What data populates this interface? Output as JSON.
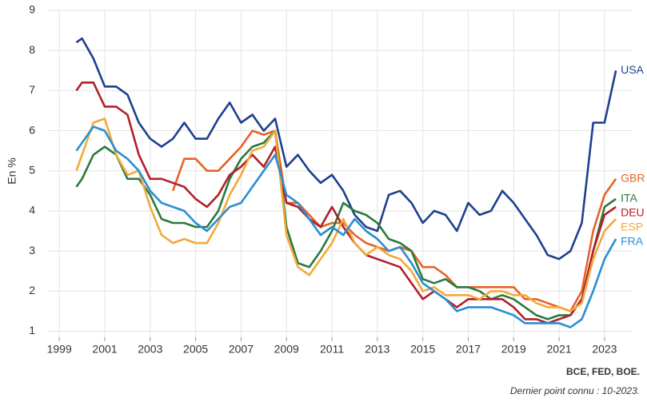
{
  "chart_data": {
    "type": "line",
    "ylabel": "En %",
    "source": "BCE, FED, BOE.",
    "note": "Dernier point connu : 10-2023.",
    "xlim": [
      1998.5,
      2024.2
    ],
    "ylim": [
      0.85,
      9
    ],
    "xticks": [
      1999,
      2001,
      2003,
      2005,
      2007,
      2009,
      2011,
      2013,
      2015,
      2017,
      2019,
      2021,
      2023
    ],
    "yticks": [
      1,
      2,
      3,
      4,
      5,
      6,
      7,
      8,
      9
    ],
    "grid": true,
    "x": [
      1999.75,
      2000,
      2000.5,
      2001,
      2001.5,
      2002,
      2002.5,
      2003,
      2003.5,
      2004,
      2004.5,
      2005,
      2005.5,
      2006,
      2006.5,
      2007,
      2007.5,
      2008,
      2008.5,
      2009,
      2009.5,
      2010,
      2010.5,
      2011,
      2011.5,
      2012,
      2012.5,
      2013,
      2013.5,
      2014,
      2014.5,
      2015,
      2015.5,
      2016,
      2016.5,
      2017,
      2017.5,
      2018,
      2018.5,
      2019,
      2019.5,
      2020,
      2020.5,
      2021,
      2021.5,
      2022,
      2022.5,
      2023,
      2023.5
    ],
    "series": [
      {
        "name": "USA",
        "color": "#1f3f8f",
        "values": [
          8.2,
          8.3,
          7.8,
          7.1,
          7.1,
          6.9,
          6.2,
          5.8,
          5.6,
          5.8,
          6.2,
          5.8,
          5.8,
          6.3,
          6.7,
          6.2,
          6.4,
          6.0,
          6.3,
          5.1,
          5.4,
          5.0,
          4.7,
          4.9,
          4.5,
          3.9,
          3.6,
          3.5,
          4.4,
          4.5,
          4.2,
          3.7,
          4.0,
          3.9,
          3.5,
          4.2,
          3.9,
          4.0,
          4.5,
          4.2,
          3.8,
          3.4,
          2.9,
          2.8,
          3.0,
          3.7,
          6.2,
          6.2,
          7.5
        ]
      },
      {
        "name": "GBR",
        "color": "#e8622a",
        "values": [
          null,
          null,
          null,
          null,
          null,
          null,
          null,
          null,
          null,
          4.5,
          5.3,
          5.3,
          5.0,
          5.0,
          5.3,
          5.6,
          6.0,
          5.9,
          6.0,
          4.2,
          4.2,
          3.9,
          3.6,
          3.7,
          3.7,
          3.4,
          3.2,
          3.1,
          3.0,
          3.1,
          3.0,
          2.6,
          2.6,
          2.4,
          2.1,
          2.1,
          2.1,
          2.1,
          2.1,
          2.1,
          1.8,
          1.8,
          1.7,
          1.6,
          1.5,
          2.0,
          3.5,
          4.4,
          4.8
        ]
      },
      {
        "name": "ITA",
        "color": "#2a7a3c",
        "values": [
          4.6,
          4.8,
          5.4,
          5.6,
          5.4,
          4.8,
          4.8,
          4.4,
          3.8,
          3.7,
          3.7,
          3.6,
          3.6,
          4.0,
          4.8,
          5.3,
          5.6,
          5.7,
          6.0,
          3.6,
          2.7,
          2.6,
          3.0,
          3.5,
          4.2,
          4.0,
          3.9,
          3.7,
          3.3,
          3.2,
          3.0,
          2.3,
          2.2,
          2.3,
          2.1,
          2.1,
          2.0,
          1.8,
          1.9,
          1.8,
          1.6,
          1.4,
          1.3,
          1.4,
          1.4,
          1.8,
          3.0,
          4.1,
          4.3
        ]
      },
      {
        "name": "DEU",
        "color": "#b3202a",
        "values": [
          7.0,
          7.2,
          7.2,
          6.6,
          6.6,
          6.4,
          5.4,
          4.8,
          4.8,
          4.7,
          4.6,
          4.3,
          4.1,
          4.4,
          4.9,
          5.1,
          5.4,
          5.1,
          5.6,
          4.2,
          4.1,
          3.8,
          3.6,
          4.1,
          3.6,
          3.2,
          2.9,
          2.8,
          2.7,
          2.6,
          2.2,
          1.8,
          2.0,
          1.8,
          1.6,
          1.8,
          1.8,
          1.8,
          1.8,
          1.6,
          1.3,
          1.3,
          1.2,
          1.3,
          1.4,
          1.8,
          3.0,
          3.9,
          4.1
        ]
      },
      {
        "name": "ESP",
        "color": "#f2a93b",
        "values": [
          5.0,
          5.4,
          6.2,
          6.3,
          5.4,
          4.9,
          5.0,
          4.1,
          3.4,
          3.2,
          3.3,
          3.2,
          3.2,
          3.7,
          4.4,
          4.9,
          5.5,
          5.6,
          6.0,
          3.4,
          2.6,
          2.4,
          2.8,
          3.2,
          3.8,
          3.2,
          2.9,
          3.1,
          2.9,
          2.8,
          2.5,
          2.0,
          2.1,
          1.9,
          1.9,
          1.9,
          1.8,
          2.0,
          2.0,
          1.9,
          1.9,
          1.7,
          1.6,
          1.6,
          1.5,
          1.7,
          2.8,
          3.5,
          3.8
        ]
      },
      {
        "name": "FRA",
        "color": "#2a8fd0",
        "values": [
          5.5,
          5.7,
          6.1,
          6.0,
          5.5,
          5.3,
          5.0,
          4.5,
          4.2,
          4.1,
          4.0,
          3.7,
          3.5,
          3.8,
          4.1,
          4.2,
          4.6,
          5.0,
          5.4,
          4.4,
          4.2,
          3.8,
          3.4,
          3.6,
          3.4,
          3.8,
          3.5,
          3.3,
          3.0,
          3.1,
          2.7,
          2.2,
          2.0,
          1.8,
          1.5,
          1.6,
          1.6,
          1.6,
          1.5,
          1.4,
          1.2,
          1.2,
          1.2,
          1.2,
          1.1,
          1.3,
          2.0,
          2.8,
          3.3
        ]
      }
    ]
  }
}
